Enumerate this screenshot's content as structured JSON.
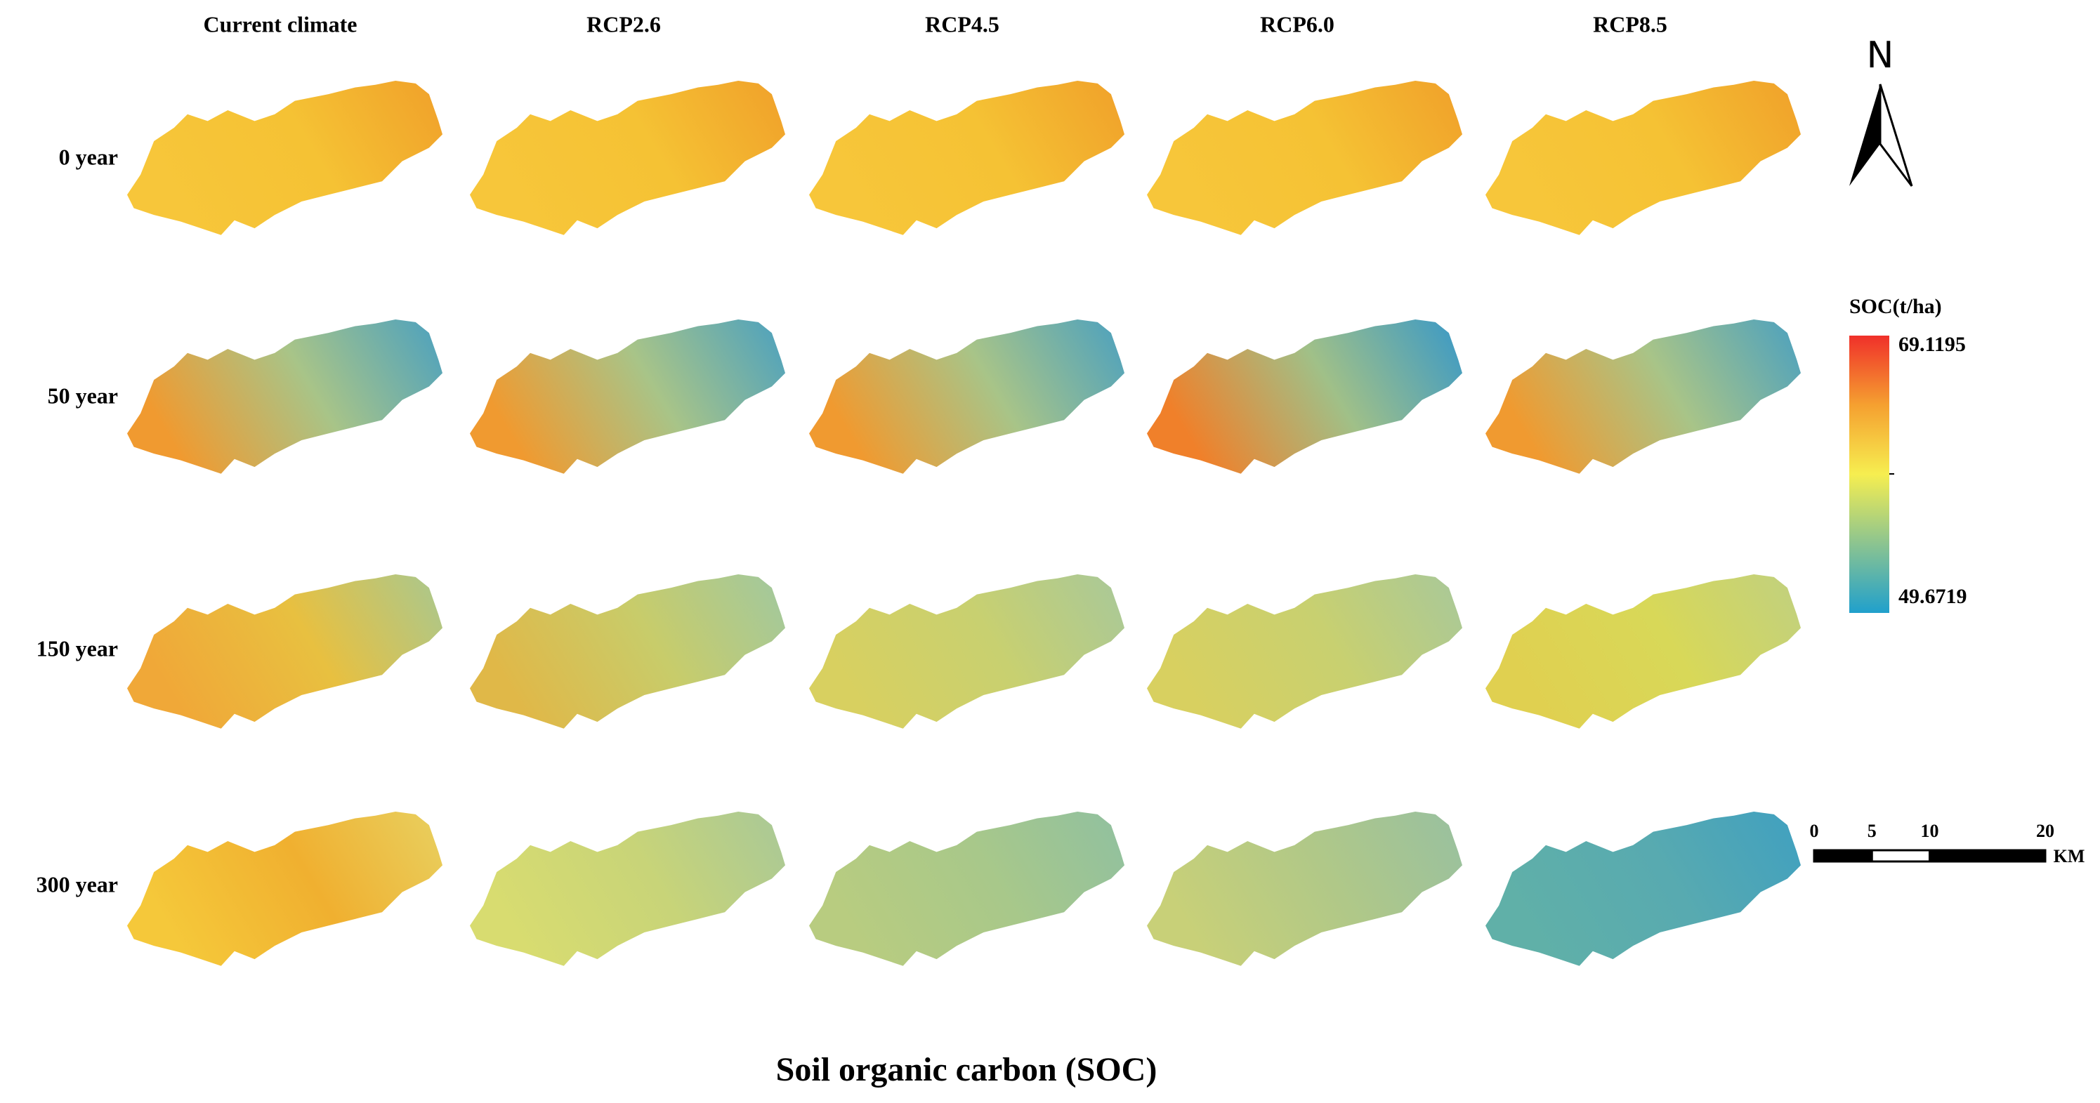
{
  "title": "Soil organic carbon (SOC)",
  "columns": [
    "Current climate",
    "RCP2.6",
    "RCP4.5",
    "RCP6.0",
    "RCP8.5"
  ],
  "rows": [
    "0 year",
    "50 year",
    "150 year",
    "300 year"
  ],
  "north": "N",
  "legend": {
    "title": "SOC(t/ha)",
    "max": 69.1195,
    "min": 49.6719
  },
  "scale_bar": {
    "ticks": [
      0,
      5,
      10,
      20
    ],
    "unit": "KM"
  }
}
